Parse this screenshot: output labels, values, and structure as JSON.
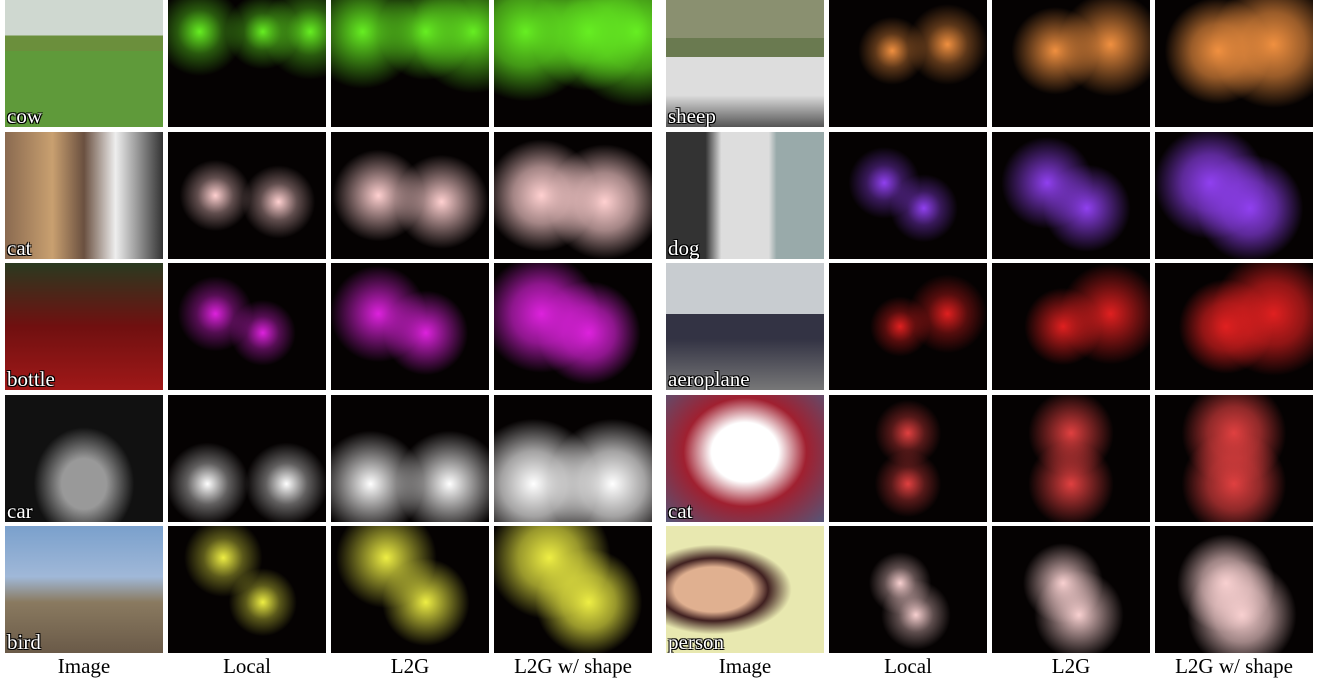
{
  "panels": [
    {
      "rows": [
        {
          "label": "cow"
        },
        {
          "label": "cat"
        },
        {
          "label": "bottle"
        },
        {
          "label": "car"
        },
        {
          "label": "bird"
        }
      ],
      "columns": [
        "Image",
        "Local",
        "L2G",
        "L2G w/ shape"
      ]
    },
    {
      "rows": [
        {
          "label": "sheep"
        },
        {
          "label": "dog"
        },
        {
          "label": "aeroplane"
        },
        {
          "label": "cat"
        },
        {
          "label": "person"
        }
      ],
      "columns": [
        "Image",
        "Local",
        "L2G",
        "L2G w/ shape"
      ]
    }
  ]
}
